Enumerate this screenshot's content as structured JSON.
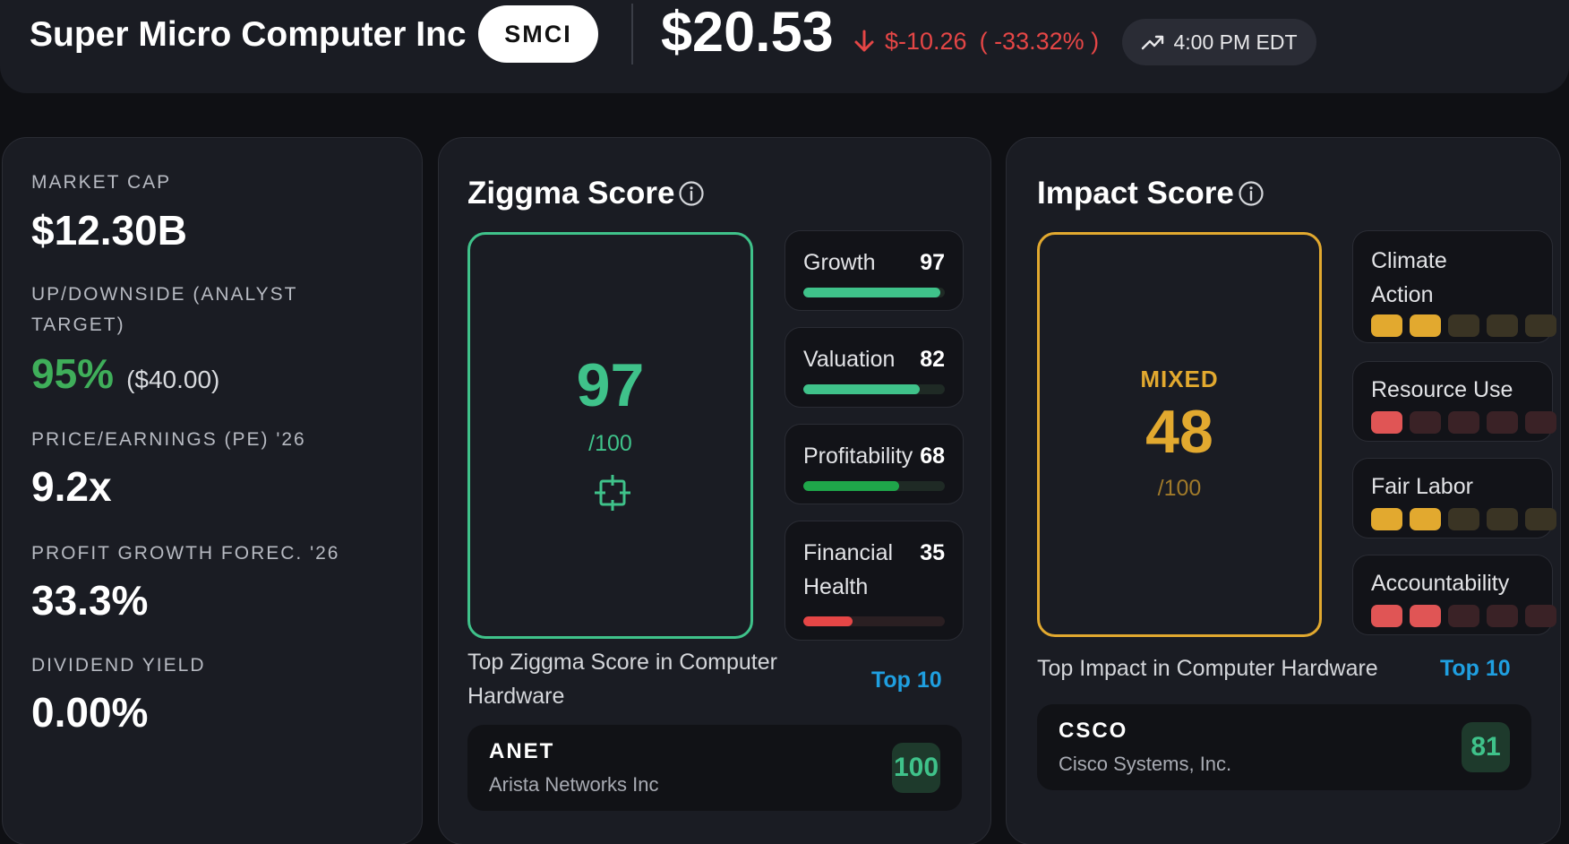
{
  "header": {
    "company": "Super Micro Computer Inc",
    "ticker": "SMCI",
    "price": "$20.53",
    "change_abs": "$-10.26",
    "change_pct": "( -33.32% )",
    "time": "4:00 PM EDT",
    "change_color": "#e54646"
  },
  "metrics": {
    "market_cap_label": "MARKET CAP",
    "market_cap_value": "$12.30B",
    "upside_label_line1": "UP/DOWNSIDE (ANALYST",
    "upside_label_line2": "TARGET)",
    "upside_pct": "95%",
    "upside_target": "($40.00)",
    "pe_label": "PRICE/EARNINGS (PE) '26",
    "pe_value": "9.2x",
    "profit_label": "PROFIT GROWTH FOREC. '26",
    "profit_value": "33.3%",
    "dividend_label": "DIVIDEND YIELD",
    "dividend_value": "0.00%"
  },
  "ziggma": {
    "title": "Ziggma Score",
    "score": "97",
    "out_of": "/100",
    "accent": "#3fc28a",
    "subscores": [
      {
        "name": "Growth",
        "value": "97",
        "fraction": 0.97,
        "color": "#3fc28a"
      },
      {
        "name": "Valuation",
        "value": "82",
        "fraction": 0.82,
        "color": "#3fc28a"
      },
      {
        "name": "Profitability",
        "value": "68",
        "fraction": 0.68,
        "color": "#1fa64a"
      },
      {
        "name_line1": "Financial",
        "name_line2": "Health",
        "value": "35",
        "fraction": 0.35,
        "color": "#e54646"
      }
    ],
    "top_caption_line1": "Top Ziggma Score in Computer",
    "top_caption_line2": "Hardware",
    "top_link": "Top 10",
    "peer": {
      "ticker": "ANET",
      "name": "Arista Networks Inc",
      "score": "100"
    }
  },
  "impact": {
    "title": "Impact Score",
    "label": "MIXED",
    "score": "48",
    "out_of": "/100",
    "accent": "#e2a92f",
    "categories": [
      {
        "name_line1": "Climate",
        "name_line2": "Action",
        "level": 2,
        "of": 5,
        "on": "#e2a92f",
        "off": "#3a3424"
      },
      {
        "name": "Resource Use",
        "level": 1,
        "of": 5,
        "on": "#e05555",
        "off": "#3a2226"
      },
      {
        "name": "Fair Labor",
        "level": 2,
        "of": 5,
        "on": "#e2a92f",
        "off": "#3a3424"
      },
      {
        "name": "Accountability",
        "level": 2,
        "of": 5,
        "on": "#e05555",
        "off": "#3a2226"
      }
    ],
    "top_caption": "Top Impact in Computer Hardware",
    "top_link": "Top 10",
    "peer": {
      "ticker": "CSCO",
      "name": "Cisco Systems, Inc.",
      "score": "81"
    }
  }
}
